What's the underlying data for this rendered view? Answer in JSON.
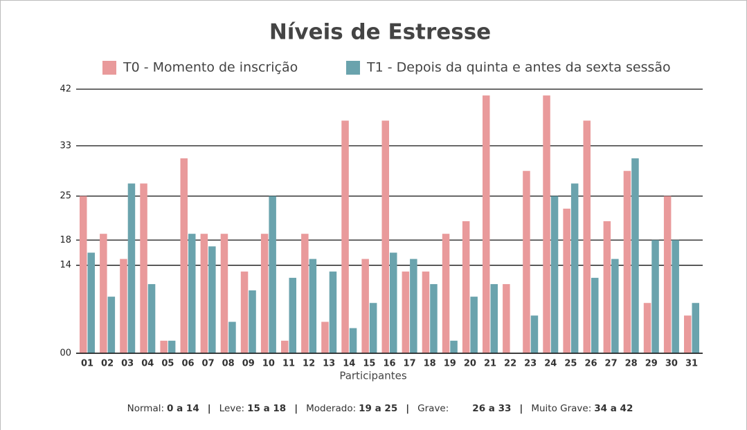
{
  "chart_data": {
    "type": "bar",
    "title": "Níveis de Estresse",
    "x_label": "Participantes",
    "categories": [
      "01",
      "02",
      "03",
      "04",
      "05",
      "06",
      "07",
      "08",
      "09",
      "10",
      "11",
      "12",
      "13",
      "14",
      "15",
      "16",
      "17",
      "18",
      "19",
      "20",
      "21",
      "22",
      "23",
      "24",
      "25",
      "26",
      "27",
      "28",
      "29",
      "30",
      "31"
    ],
    "series": [
      {
        "name": "T0 - Momento de inscrição",
        "color": "#e99a9b",
        "values": [
          25,
          19,
          15,
          27,
          2,
          31,
          19,
          19,
          13,
          19,
          2,
          19,
          5,
          37,
          15,
          37,
          13,
          13,
          19,
          21,
          41,
          11,
          29,
          41,
          23,
          37,
          21,
          29,
          8,
          25,
          6
        ]
      },
      {
        "name": "T1 - Depois da quinta e antes da sexta sessão",
        "color": "#6aa3ad",
        "values": [
          16,
          9,
          27,
          11,
          2,
          19,
          17,
          5,
          10,
          25,
          12,
          15,
          13,
          4,
          8,
          16,
          15,
          11,
          2,
          9,
          11,
          0,
          6,
          25,
          27,
          12,
          15,
          31,
          18,
          18,
          8
        ]
      }
    ],
    "ylim": [
      0,
      42
    ],
    "yticks": [
      {
        "value": 0,
        "label": "00"
      },
      14,
      18,
      25,
      33,
      42
    ],
    "grid": true,
    "severity_scale": [
      {
        "label": "Normal:",
        "range": "0 a 14"
      },
      {
        "label": "Leve:",
        "range": "15 a 18"
      },
      {
        "label": "Moderado:",
        "range": "19 a 25"
      },
      {
        "label": "Grave:",
        "range": "26 a 33"
      },
      {
        "label": "Muito Grave:",
        "range": "34 a 42"
      }
    ]
  }
}
